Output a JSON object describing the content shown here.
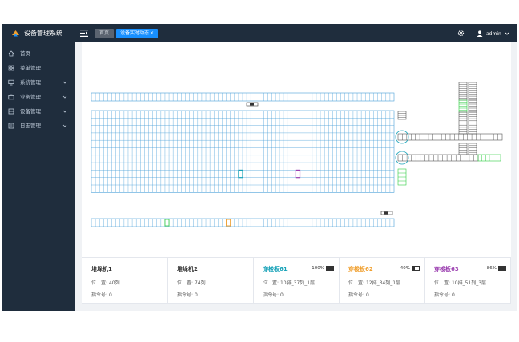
{
  "app": {
    "title": "设备管理系统"
  },
  "header": {
    "tabs": [
      {
        "label": "首页",
        "active": false
      },
      {
        "label": "设备实时动态",
        "close": "×",
        "active": true
      }
    ],
    "user": {
      "name": "admin"
    }
  },
  "sidebar": {
    "items": [
      {
        "label": "首页",
        "icon": "home-icon",
        "expandable": false
      },
      {
        "label": "菜单管理",
        "icon": "grid-icon",
        "expandable": false
      },
      {
        "label": "系统管理",
        "icon": "monitor-icon",
        "expandable": true
      },
      {
        "label": "业务管理",
        "icon": "briefcase-icon",
        "expandable": true
      },
      {
        "label": "设备管理",
        "icon": "server-icon",
        "expandable": true
      },
      {
        "label": "日志管理",
        "icon": "list-icon",
        "expandable": true
      }
    ]
  },
  "colors": {
    "sidebar_bg": "#1f2d3d",
    "accent": "#1890ff",
    "rack_blue": "#4a9fd8",
    "conveyor_green": "#2ecc40",
    "teal": "#17a2b8",
    "orange": "#f0a030",
    "purple": "#9b3fb0"
  },
  "warehouse": {
    "top_row_columns": 74,
    "main_block_rows": 11,
    "bottom_row_columns": 74
  },
  "cards": [
    {
      "title": "堆垛机1",
      "position_label": "位　置:",
      "position_value": "40列",
      "cmd_label": "指令号:",
      "cmd_value": "0",
      "color": "#333333"
    },
    {
      "title": "堆垛机2",
      "position_label": "位　置:",
      "position_value": "74列",
      "cmd_label": "指令号:",
      "cmd_value": "0",
      "color": "#333333"
    },
    {
      "title": "穿梭板61",
      "battery": "100%",
      "battery_level": 1.0,
      "position_label": "位　置:",
      "position_value": "10排_37列_1层",
      "cmd_label": "指令号:",
      "cmd_value": "0",
      "color": "#17a2b8"
    },
    {
      "title": "穿梭板62",
      "battery": "40%",
      "battery_level": 0.4,
      "position_label": "位　置:",
      "position_value": "12排_34列_1层",
      "cmd_label": "指令号:",
      "cmd_value": "0",
      "color": "#f0a030"
    },
    {
      "title": "穿梭板63",
      "battery": "86%",
      "battery_level": 0.86,
      "position_label": "位　置:",
      "position_value": "10排_51列_3层",
      "cmd_label": "指令号:",
      "cmd_value": "0",
      "color": "#9b3fb0"
    }
  ]
}
